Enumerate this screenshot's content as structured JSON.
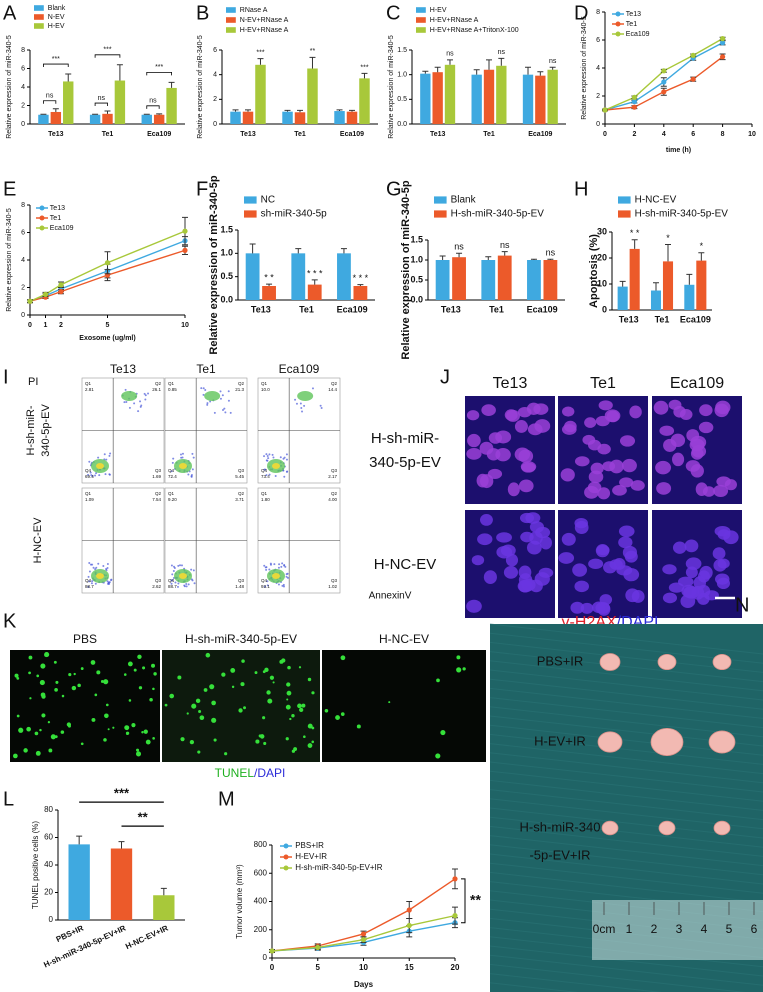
{
  "chart_data": [
    {
      "panel": "A",
      "type": "bar",
      "ylabel": "Relative expression of miR-340-5",
      "categories": [
        "Te13",
        "Te1",
        "Eca109"
      ],
      "series": [
        {
          "name": "Blank",
          "color": "#3fa9e0",
          "values": [
            1,
            1,
            1
          ],
          "errors": [
            0.05,
            0.05,
            0.05
          ]
        },
        {
          "name": "N-EV",
          "color": "#ec5a2a",
          "values": [
            1.3,
            1.1,
            1.0
          ],
          "errors": [
            0.35,
            0.3,
            0.1
          ]
        },
        {
          "name": "H-EV",
          "color": "#a8c83a",
          "values": [
            4.6,
            4.7,
            3.9
          ],
          "errors": [
            0.8,
            1.7,
            0.6
          ]
        }
      ],
      "ylim": [
        0,
        8
      ],
      "yticks": [
        0,
        2,
        4,
        6,
        8
      ],
      "annotations": [
        [
          "ns",
          "***"
        ],
        [
          "ns",
          "***"
        ],
        [
          "ns",
          "***"
        ]
      ]
    },
    {
      "panel": "B",
      "type": "bar",
      "ylabel": "Relative expression of miR-340-5",
      "categories": [
        "Te13",
        "Te1",
        "Eca109"
      ],
      "series": [
        {
          "name": "RNase A",
          "color": "#3fa9e0",
          "values": [
            1,
            1,
            1.05
          ],
          "errors": [
            0.15,
            0.1,
            0.1
          ]
        },
        {
          "name": "N-EV+RNase A",
          "color": "#ec5a2a",
          "values": [
            1,
            0.95,
            1.0
          ],
          "errors": [
            0.15,
            0.15,
            0.1
          ]
        },
        {
          "name": "H-EV+RNase A",
          "color": "#a8c83a",
          "values": [
            4.8,
            4.5,
            3.7
          ],
          "errors": [
            0.5,
            0.9,
            0.4
          ]
        }
      ],
      "ylim": [
        0,
        6
      ],
      "yticks": [
        0,
        2,
        4,
        6
      ],
      "annotations": [
        "***",
        "**",
        "***"
      ]
    },
    {
      "panel": "C",
      "type": "bar",
      "ylabel": "Relative expression of miR-340-5",
      "categories": [
        "Te13",
        "Te1",
        "Eca109"
      ],
      "series": [
        {
          "name": "H-EV",
          "color": "#3fa9e0",
          "values": [
            1.02,
            1.0,
            1.0
          ],
          "errors": [
            0.05,
            0.1,
            0.15
          ]
        },
        {
          "name": "H-EV+RNase A",
          "color": "#ec5a2a",
          "values": [
            1.05,
            1.1,
            0.98
          ],
          "errors": [
            0.1,
            0.2,
            0.08
          ]
        },
        {
          "name": "H-EV+RNase A+TritonX-100",
          "color": "#a8c83a",
          "values": [
            1.2,
            1.18,
            1.1
          ],
          "errors": [
            0.1,
            0.15,
            0.05
          ]
        }
      ],
      "ylim": [
        0,
        1.5
      ],
      "yticks": [
        {
          "value": 0,
          "label": "0.0"
        },
        0.5,
        {
          "value": 1,
          "label": "1.0"
        },
        1.5
      ],
      "annotations": [
        "ns",
        "ns",
        "ns"
      ]
    },
    {
      "panel": "D",
      "type": "line",
      "ylabel": "Relative expression of miR-340-5",
      "xlabel": "time (h)",
      "x": [
        0,
        2,
        4,
        6,
        8
      ],
      "series": [
        {
          "name": "Te13",
          "color": "#3fa9e0",
          "values": [
            1,
            1.6,
            3,
            4.7,
            5.8
          ],
          "errors": [
            0.05,
            0.1,
            0.3,
            0.15,
            0.15
          ]
        },
        {
          "name": "Te1",
          "color": "#ec5a2a",
          "values": [
            1,
            1.2,
            2.3,
            3.2,
            4.8
          ],
          "errors": [
            0.05,
            0.1,
            0.25,
            0.15,
            0.2
          ]
        },
        {
          "name": "Eca109",
          "color": "#a8c83a",
          "values": [
            1,
            1.9,
            3.8,
            4.9,
            6.1
          ],
          "errors": [
            0.05,
            0.1,
            0.1,
            0.1,
            0.1
          ]
        }
      ],
      "xlim": [
        0,
        10
      ],
      "xticks": [
        0,
        2,
        4,
        6,
        8,
        10
      ],
      "ylim": [
        0,
        8
      ],
      "yticks": [
        0,
        2,
        4,
        6,
        8
      ]
    },
    {
      "panel": "E",
      "type": "line",
      "ylabel": "Relative expression of miR-340-5",
      "xlabel": "Exosome (ug/ml)",
      "x": [
        0,
        1,
        2,
        5,
        10
      ],
      "series": [
        {
          "name": "Te13",
          "color": "#3fa9e0",
          "values": [
            1,
            1.4,
            1.9,
            3.2,
            5.4
          ],
          "errors": [
            0.1,
            0.15,
            0.2,
            0.5,
            0.3
          ]
        },
        {
          "name": "Te1",
          "color": "#ec5a2a",
          "values": [
            1,
            1.3,
            1.7,
            2.9,
            4.7
          ],
          "errors": [
            0.1,
            0.1,
            0.15,
            0.4,
            0.3
          ]
        },
        {
          "name": "Eca109",
          "color": "#a8c83a",
          "values": [
            1,
            1.5,
            2.2,
            3.8,
            6.1
          ],
          "errors": [
            0.1,
            0.15,
            0.2,
            0.8,
            1.0
          ]
        }
      ],
      "xlim": [
        0,
        10
      ],
      "xticks": [
        0,
        1,
        2,
        5,
        10
      ],
      "ylim": [
        0,
        8
      ],
      "yticks": [
        0,
        2,
        4,
        6,
        8
      ]
    },
    {
      "panel": "F",
      "type": "bar",
      "ylabel": "Relative expression of miR-340-5p",
      "categories": [
        "Te13",
        "Te1",
        "Eca109"
      ],
      "series": [
        {
          "name": "NC",
          "color": "#3fa9e0",
          "values": [
            1,
            1,
            1
          ],
          "errors": [
            0.2,
            0.1,
            0.1
          ]
        },
        {
          "name": "sh-miR-340-5p",
          "color": "#ec5a2a",
          "values": [
            0.3,
            0.33,
            0.3
          ],
          "errors": [
            0.04,
            0.1,
            0.03
          ]
        }
      ],
      "ylim": [
        0,
        1.5
      ],
      "yticks": [
        {
          "value": 0,
          "label": "0.0"
        },
        0.5,
        {
          "value": 1,
          "label": "1.0"
        },
        1.5
      ],
      "annotations": [
        "* *",
        "* * *",
        "* * *"
      ]
    },
    {
      "panel": "G",
      "type": "bar",
      "ylabel": "Relative expression of miR-340-5p",
      "categories": [
        "Te13",
        "Te1",
        "Eca109"
      ],
      "series": [
        {
          "name": "Blank",
          "color": "#3fa9e0",
          "values": [
            1,
            1,
            1
          ],
          "errors": [
            0.1,
            0.08,
            0.02
          ]
        },
        {
          "name": "H-sh-miR-340-5p-EV",
          "color": "#ec5a2a",
          "values": [
            1.07,
            1.11,
            1.0
          ],
          "errors": [
            0.1,
            0.1,
            0.02
          ]
        }
      ],
      "ylim": [
        0,
        1.5
      ],
      "yticks": [
        {
          "value": 0,
          "label": "0.0"
        },
        0.5,
        {
          "value": 1,
          "label": "1.0"
        },
        1.5
      ],
      "annotations": [
        "ns",
        "ns",
        "ns"
      ]
    },
    {
      "panel": "H",
      "type": "bar",
      "ylabel": "Apoptosis (%)",
      "categories": [
        "Te13",
        "Te1",
        "Eca109"
      ],
      "series": [
        {
          "name": "H-NC-EV",
          "color": "#3fa9e0",
          "values": [
            9,
            7.5,
            9.7
          ],
          "errors": [
            2,
            3,
            4
          ]
        },
        {
          "name": "H-sh-miR-340-5p-EV",
          "color": "#ec5a2a",
          "values": [
            23.5,
            18.7,
            19
          ],
          "errors": [
            3.5,
            6.5,
            3
          ]
        }
      ],
      "ylim": [
        0,
        30
      ],
      "yticks": [
        0,
        10,
        20,
        30
      ],
      "annotations": [
        "* *",
        "*",
        "*"
      ]
    },
    {
      "panel": "L",
      "type": "bar",
      "ylabel": "TUNEL positive cells (%)",
      "categories": [
        "PBS+IR",
        "H-sh-miR-340-5p-EV+IR",
        "H-NC-EV+IR"
      ],
      "values": [
        55,
        52,
        18
      ],
      "errors": [
        6,
        5,
        5
      ],
      "colors": [
        "#3fa9e0",
        "#ec5a2a",
        "#a8c83a"
      ],
      "ylim": [
        0,
        80
      ],
      "yticks": [
        0,
        20,
        40,
        60,
        80
      ],
      "brackets": [
        {
          "text": "***",
          "from": 0,
          "to": 2
        },
        {
          "text": "**",
          "from": 1,
          "to": 2
        }
      ]
    },
    {
      "panel": "M",
      "type": "line",
      "ylabel": "Tumor volume (mm³)",
      "xlabel": "Days",
      "x": [
        0,
        5,
        10,
        15,
        20
      ],
      "series": [
        {
          "name": "PBS+IR",
          "color": "#3fa9e0",
          "values": [
            50,
            70,
            110,
            190,
            250
          ],
          "errors": [
            10,
            15,
            20,
            40,
            35
          ]
        },
        {
          "name": "H-EV+IR",
          "color": "#ec5a2a",
          "values": [
            50,
            85,
            170,
            340,
            560
          ],
          "errors": [
            10,
            15,
            20,
            60,
            70
          ]
        },
        {
          "name": "H-sh-miR-340-5p-EV+IR",
          "color": "#a8c83a",
          "values": [
            50,
            75,
            130,
            230,
            300
          ],
          "errors": [
            10,
            15,
            20,
            50,
            60
          ]
        }
      ],
      "xlim": [
        0,
        20
      ],
      "xticks": [
        0,
        5,
        10,
        15,
        20
      ],
      "ylim": [
        0,
        800
      ],
      "yticks": [
        0,
        200,
        400,
        600,
        800
      ],
      "annotation": "**"
    }
  ],
  "figure_panels": {
    "I": {
      "panel": "I",
      "columns": [
        "Te13",
        "Te1",
        "Eca109"
      ],
      "y_axis_label": "PI",
      "x_axis_label": "AnnexinV",
      "rows": [
        [
          "H-sh-miR-",
          "340-5p-EV"
        ],
        [
          "H-NC-EV"
        ]
      ],
      "quadrant_labels": [
        "Q1",
        "Q2",
        "Q3",
        "Q4"
      ],
      "quadrant_values": [
        [
          [
            "2.81",
            "26.1",
            "1.69",
            "69.4"
          ],
          [
            "0.85",
            "21.3",
            "5.45",
            "72.4"
          ],
          [
            "10.0",
            "14.4",
            "2.17",
            "73.4"
          ]
        ],
        [
          [
            "1.09",
            "7.54",
            "2.62",
            "88.7"
          ],
          [
            "9.20",
            "3.71",
            "1.48",
            "88.7"
          ],
          [
            "1.80",
            "4.00",
            "1.02",
            "93.1"
          ]
        ]
      ]
    },
    "J": {
      "panel": "J",
      "columns": [
        "Te13",
        "Te1",
        "Eca109"
      ],
      "rows": [
        [
          "H-sh-miR-",
          "340-5p-EV"
        ],
        [
          "H-NC-EV"
        ]
      ],
      "stain": "γ-H2AX",
      "counterstain": "/DAPI"
    },
    "K": {
      "panel": "K",
      "columns": [
        "PBS",
        "H-sh-miR-340-5p-EV",
        "H-NC-EV"
      ],
      "stain": "TUNEL",
      "counterstain": "/DAPI"
    },
    "N": {
      "panel": "N",
      "rows": [
        [
          "PBS+IR"
        ],
        [
          "H-EV+IR"
        ],
        [
          "H-sh-miR-340",
          "-5p-EV+IR"
        ]
      ],
      "ruler": [
        "0cm",
        "1",
        "2",
        "3",
        "4",
        "5",
        "6"
      ]
    }
  }
}
